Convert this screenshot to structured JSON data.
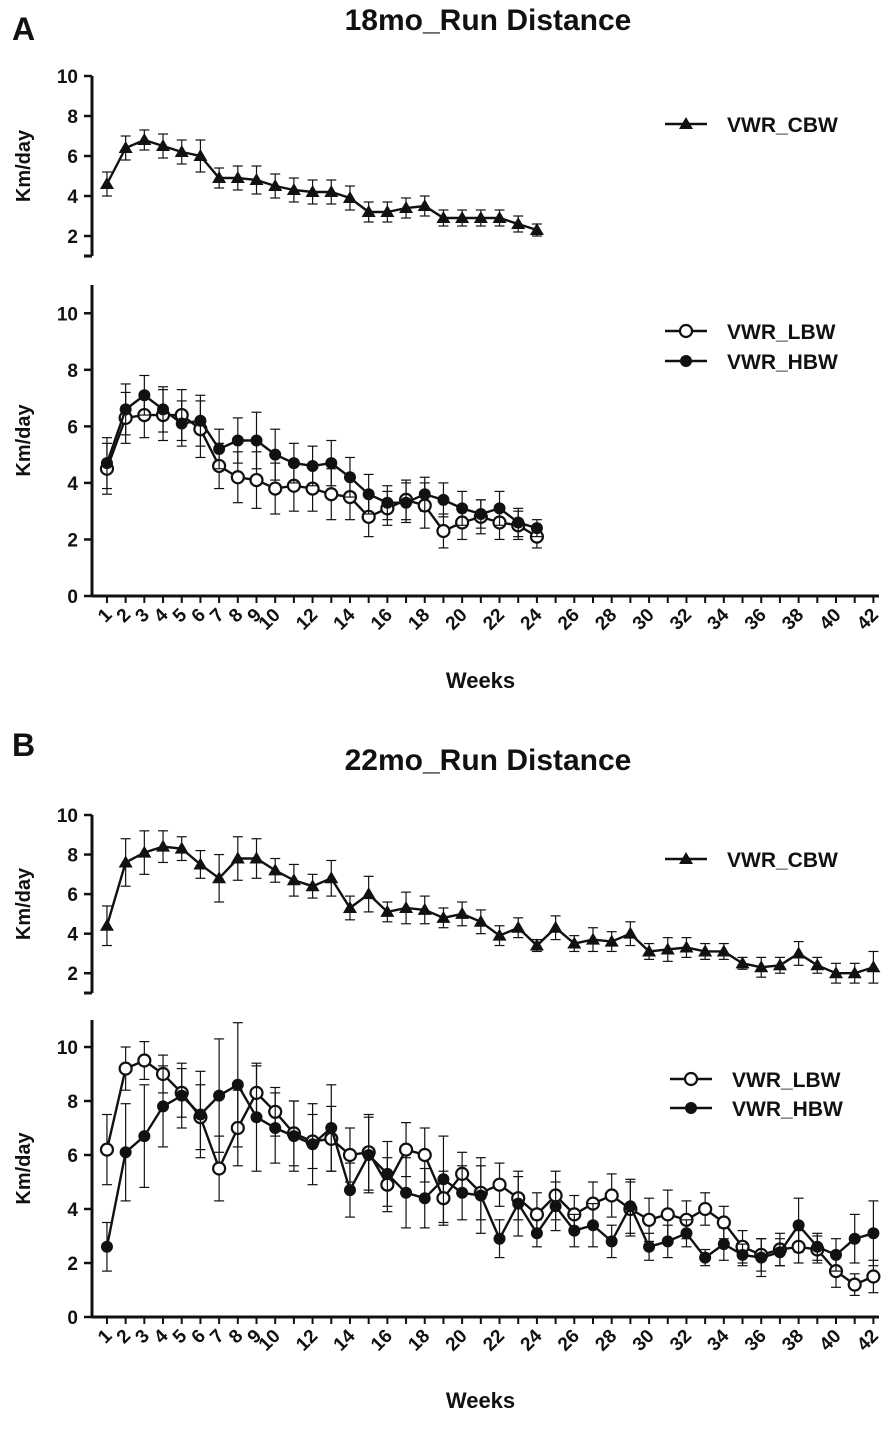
{
  "figure": {
    "panels": [
      {
        "label": "A",
        "title": "18mo_Run Distance"
      },
      {
        "label": "B",
        "title": "22mo_Run Distance"
      }
    ],
    "x_tick_labels": [
      "1",
      "2",
      "3",
      "4",
      "5",
      "6",
      "7",
      "8",
      "9",
      "10",
      "12",
      "14",
      "16",
      "18",
      "20",
      "22",
      "24",
      "26",
      "28",
      "30",
      "32",
      "34",
      "36",
      "38",
      "40",
      "42"
    ]
  },
  "chart_data": [
    {
      "id": "A-top",
      "panel": "A",
      "type": "line",
      "title": "18mo_Run Distance",
      "xlabel": "",
      "ylabel": "Km/day",
      "ylim": [
        1,
        10
      ],
      "yticks": [
        2,
        4,
        6,
        8,
        10
      ],
      "xlim": [
        0.2,
        42.3
      ],
      "legend_position": "top-right",
      "series": [
        {
          "name": "VWR_CBW",
          "marker": "triangle",
          "x": [
            1,
            2,
            3,
            4,
            5,
            6,
            7,
            8,
            9,
            10,
            11,
            12,
            13,
            14,
            15,
            16,
            17,
            18,
            19,
            20,
            21,
            22,
            23,
            24
          ],
          "y": [
            4.6,
            6.4,
            6.8,
            6.5,
            6.2,
            6.0,
            4.9,
            4.9,
            4.8,
            4.5,
            4.3,
            4.2,
            4.2,
            3.9,
            3.2,
            3.2,
            3.4,
            3.5,
            2.9,
            2.9,
            2.9,
            2.9,
            2.6,
            2.3
          ],
          "err": [
            0.6,
            0.6,
            0.5,
            0.6,
            0.6,
            0.8,
            0.5,
            0.6,
            0.7,
            0.6,
            0.6,
            0.6,
            0.6,
            0.6,
            0.5,
            0.5,
            0.5,
            0.5,
            0.4,
            0.4,
            0.4,
            0.4,
            0.4,
            0.3
          ]
        }
      ]
    },
    {
      "id": "A-bottom",
      "panel": "A",
      "type": "line",
      "xlabel": "Weeks",
      "ylabel": "Km/day",
      "ylim": [
        0,
        11
      ],
      "yticks": [
        0,
        2,
        4,
        6,
        8,
        10
      ],
      "xlim": [
        0.2,
        42.3
      ],
      "legend_position": "top-right",
      "series": [
        {
          "name": "VWR_LBW",
          "marker": "open-circle",
          "x": [
            1,
            2,
            3,
            4,
            5,
            6,
            7,
            8,
            9,
            10,
            11,
            12,
            13,
            14,
            15,
            16,
            17,
            18,
            19,
            20,
            21,
            22,
            23,
            24
          ],
          "y": [
            4.5,
            6.3,
            6.4,
            6.4,
            6.4,
            5.9,
            4.6,
            4.2,
            4.1,
            3.8,
            3.9,
            3.8,
            3.6,
            3.5,
            2.8,
            3.1,
            3.4,
            3.2,
            2.3,
            2.6,
            2.8,
            2.6,
            2.5,
            2.1
          ],
          "err": [
            0.9,
            0.9,
            0.8,
            0.9,
            0.9,
            1.0,
            0.8,
            0.9,
            1.0,
            0.9,
            0.9,
            0.8,
            0.9,
            0.8,
            0.7,
            0.6,
            0.7,
            0.8,
            0.6,
            0.6,
            0.6,
            0.6,
            0.5,
            0.4
          ]
        },
        {
          "name": "VWR_HBW",
          "marker": "filled-circle",
          "x": [
            1,
            2,
            3,
            4,
            5,
            6,
            7,
            8,
            9,
            10,
            11,
            12,
            13,
            14,
            15,
            16,
            17,
            18,
            19,
            20,
            21,
            22,
            23,
            24
          ],
          "y": [
            4.7,
            6.6,
            7.1,
            6.6,
            6.1,
            6.2,
            5.2,
            5.5,
            5.5,
            5.0,
            4.7,
            4.6,
            4.7,
            4.2,
            3.6,
            3.3,
            3.3,
            3.6,
            3.4,
            3.1,
            2.9,
            3.1,
            2.6,
            2.4
          ],
          "err": [
            0.9,
            0.9,
            0.7,
            0.8,
            0.8,
            0.9,
            0.7,
            0.8,
            1.0,
            0.9,
            0.7,
            0.7,
            0.8,
            0.7,
            0.7,
            0.6,
            0.7,
            0.6,
            0.6,
            0.6,
            0.5,
            0.6,
            0.5,
            0.3
          ]
        }
      ]
    },
    {
      "id": "B-top",
      "panel": "B",
      "type": "line",
      "title": "22mo_Run Distance",
      "xlabel": "",
      "ylabel": "Km/day",
      "ylim": [
        1,
        10
      ],
      "yticks": [
        2,
        4,
        6,
        8,
        10
      ],
      "xlim": [
        0.2,
        42.3
      ],
      "legend_position": "top-right",
      "series": [
        {
          "name": "VWR_CBW",
          "marker": "triangle",
          "x": [
            1,
            2,
            3,
            4,
            5,
            6,
            7,
            8,
            9,
            10,
            11,
            12,
            13,
            14,
            15,
            16,
            17,
            18,
            19,
            20,
            21,
            22,
            23,
            24,
            25,
            26,
            27,
            28,
            29,
            30,
            31,
            32,
            33,
            34,
            35,
            36,
            37,
            38,
            39,
            40,
            41,
            42
          ],
          "y": [
            4.4,
            7.6,
            8.1,
            8.4,
            8.3,
            7.5,
            6.8,
            7.8,
            7.8,
            7.2,
            6.7,
            6.4,
            6.8,
            5.3,
            6.0,
            5.1,
            5.3,
            5.2,
            4.8,
            5.0,
            4.6,
            3.9,
            4.3,
            3.4,
            4.3,
            3.5,
            3.7,
            3.6,
            4.0,
            3.1,
            3.2,
            3.3,
            3.1,
            3.1,
            2.5,
            2.3,
            2.4,
            3.0,
            2.4,
            2.0,
            2.0,
            2.3
          ],
          "err": [
            1.0,
            1.2,
            1.1,
            0.8,
            0.6,
            0.7,
            1.2,
            1.1,
            1.0,
            0.6,
            0.8,
            0.6,
            0.9,
            0.6,
            0.9,
            0.5,
            0.8,
            0.7,
            0.5,
            0.6,
            0.6,
            0.5,
            0.5,
            0.3,
            0.6,
            0.4,
            0.6,
            0.5,
            0.6,
            0.4,
            0.6,
            0.5,
            0.4,
            0.4,
            0.3,
            0.5,
            0.4,
            0.6,
            0.4,
            0.5,
            0.5,
            0.8
          ]
        }
      ]
    },
    {
      "id": "B-bottom",
      "panel": "B",
      "type": "line",
      "xlabel": "Weeks",
      "ylabel": "Km/day",
      "ylim": [
        0,
        11
      ],
      "yticks": [
        0,
        2,
        4,
        6,
        8,
        10
      ],
      "xlim": [
        0.2,
        42.3
      ],
      "legend_position": "top-right",
      "series": [
        {
          "name": "VWR_LBW",
          "marker": "open-circle",
          "x": [
            1,
            2,
            3,
            4,
            5,
            6,
            7,
            8,
            9,
            10,
            11,
            12,
            13,
            14,
            15,
            16,
            17,
            18,
            19,
            20,
            21,
            22,
            23,
            24,
            25,
            26,
            27,
            28,
            29,
            30,
            31,
            32,
            33,
            34,
            35,
            36,
            37,
            38,
            39,
            40,
            41,
            42
          ],
          "y": [
            6.2,
            9.2,
            9.5,
            9.0,
            8.3,
            7.4,
            5.5,
            7.0,
            8.3,
            7.6,
            6.8,
            6.5,
            6.6,
            6.0,
            6.1,
            4.9,
            6.2,
            6.0,
            4.4,
            5.3,
            4.6,
            4.9,
            4.4,
            3.8,
            4.5,
            3.8,
            4.2,
            4.5,
            4.0,
            3.6,
            3.8,
            3.6,
            4.0,
            3.5,
            2.6,
            2.3,
            2.5,
            2.6,
            2.5,
            1.7,
            1.2,
            1.5
          ],
          "err": [
            1.3,
            0.8,
            0.7,
            0.7,
            0.9,
            1.2,
            1.2,
            1.4,
            1.0,
            0.9,
            1.2,
            1.0,
            1.2,
            1.0,
            1.4,
            1.0,
            1.0,
            1.0,
            1.0,
            0.8,
            1.0,
            0.8,
            0.8,
            0.8,
            0.9,
            0.7,
            0.8,
            0.8,
            1.0,
            0.8,
            0.9,
            0.7,
            0.6,
            0.6,
            0.6,
            0.6,
            0.6,
            0.6,
            0.5,
            0.6,
            0.4,
            0.6
          ]
        },
        {
          "name": "VWR_HBW",
          "marker": "filled-circle",
          "x": [
            1,
            2,
            3,
            4,
            5,
            6,
            7,
            8,
            9,
            10,
            11,
            12,
            13,
            14,
            15,
            16,
            17,
            18,
            19,
            20,
            21,
            22,
            23,
            24,
            25,
            26,
            27,
            28,
            29,
            30,
            31,
            32,
            33,
            34,
            35,
            36,
            37,
            38,
            39,
            40,
            41,
            42
          ],
          "y": [
            2.6,
            6.1,
            6.7,
            7.8,
            8.2,
            7.5,
            8.2,
            8.6,
            7.4,
            7.0,
            6.7,
            6.4,
            7.0,
            4.7,
            6.0,
            5.3,
            4.6,
            4.4,
            5.1,
            4.6,
            4.5,
            2.9,
            4.2,
            3.1,
            4.1,
            3.2,
            3.4,
            2.8,
            4.1,
            2.6,
            2.8,
            3.1,
            2.2,
            2.7,
            2.3,
            2.2,
            2.4,
            3.4,
            2.6,
            2.3,
            2.9,
            3.1
          ],
          "err": [
            0.9,
            1.8,
            1.9,
            1.5,
            1.2,
            1.6,
            2.1,
            2.3,
            2.0,
            1.3,
            1.3,
            1.5,
            1.6,
            1.0,
            1.4,
            1.2,
            1.3,
            1.1,
            1.6,
            1.0,
            1.4,
            0.7,
            1.2,
            0.5,
            0.9,
            0.6,
            0.8,
            0.6,
            1.0,
            0.5,
            0.6,
            0.5,
            0.3,
            0.6,
            0.4,
            0.7,
            0.5,
            1.0,
            0.5,
            0.6,
            0.9,
            1.2
          ]
        }
      ]
    }
  ]
}
